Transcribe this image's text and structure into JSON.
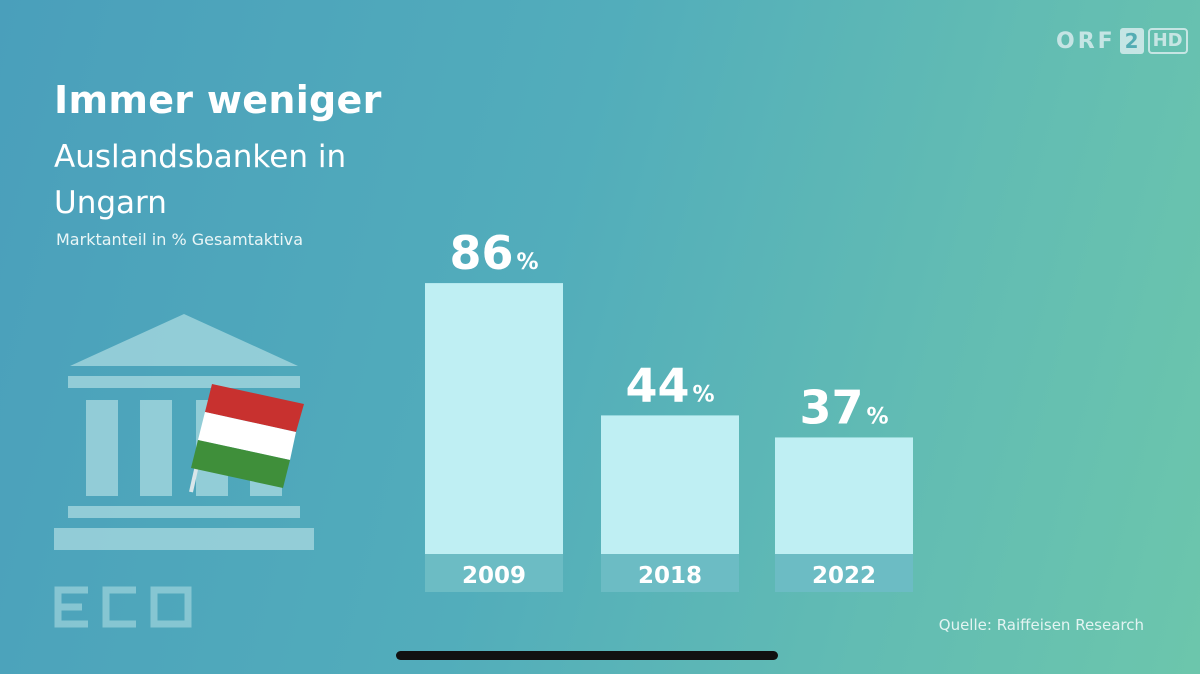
{
  "channel_logo": {
    "orf": "ORF",
    "number": "2",
    "hd": "HD"
  },
  "header": {
    "title": "Immer weniger",
    "subtitle": "Auslandsbanken in Ungarn",
    "unit_note": "Marktanteil in % Gesamtaktiva"
  },
  "source": "Quelle: Raiffeisen Research",
  "watermark": "ECO",
  "colors": {
    "bar": "#bfeff3",
    "label_band": "#6cbcc4",
    "background_left": "#4a9fbb",
    "background_right": "#6cc6ac",
    "flag_red": "#c8312f",
    "flag_white": "#ffffff",
    "flag_green": "#3f8f3a"
  },
  "icons": {
    "illustration": "bank-building-icon",
    "flag": "hungary-flag-icon"
  },
  "chart_data": {
    "type": "bar",
    "categories": [
      "2009",
      "2018",
      "2022"
    ],
    "values": [
      86,
      44,
      37
    ],
    "value_suffix": "%",
    "title": "Immer weniger",
    "xlabel": "",
    "ylabel": "Marktanteil in % Gesamtaktiva",
    "ylim": [
      0,
      100
    ],
    "grid": false,
    "legend": "none"
  }
}
